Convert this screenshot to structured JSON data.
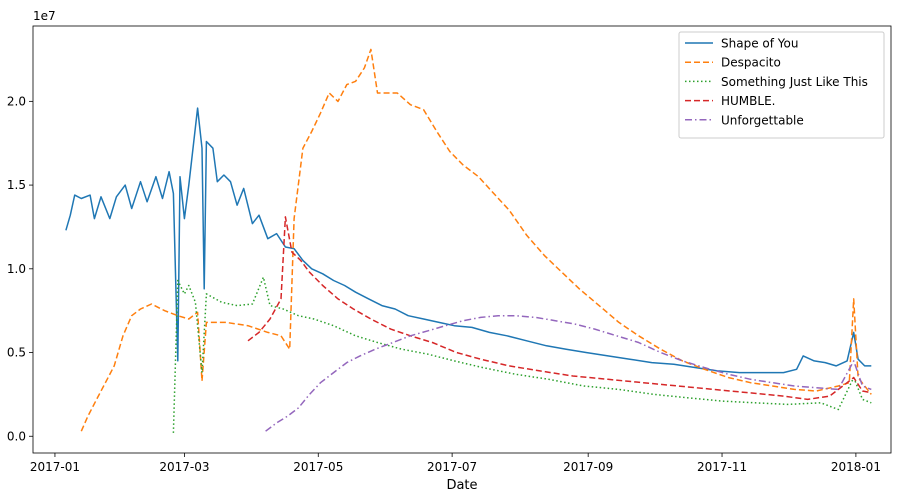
{
  "chart_data": {
    "type": "line",
    "xlabel": "Date",
    "ylabel": "",
    "y_offset_label": "1e7",
    "xlim": [
      "2016-12-22",
      "2018-01-17"
    ],
    "ylim": [
      -0.1,
      2.45
    ],
    "y_scale_note": "values in units of 1e7 streams",
    "x_ticks": [
      {
        "date": "2017-01-01",
        "label": "2017-01"
      },
      {
        "date": "2017-03-01",
        "label": "2017-03"
      },
      {
        "date": "2017-05-01",
        "label": "2017-05"
      },
      {
        "date": "2017-07-01",
        "label": "2017-07"
      },
      {
        "date": "2017-09-01",
        "label": "2017-09"
      },
      {
        "date": "2017-11-01",
        "label": "2017-11"
      },
      {
        "date": "2018-01-01",
        "label": "2018-01"
      }
    ],
    "y_ticks": [
      {
        "value": 0.0,
        "label": "0.0"
      },
      {
        "value": 0.5,
        "label": "0.5"
      },
      {
        "value": 1.0,
        "label": "1.0"
      },
      {
        "value": 1.5,
        "label": "1.5"
      },
      {
        "value": 2.0,
        "label": "2.0"
      }
    ],
    "grid": false,
    "legend_position": "top-right",
    "series": [
      {
        "name": "Shape of You",
        "color": "#1f77b4",
        "dash": "solid",
        "points": [
          [
            "2017-01-06",
            1.23
          ],
          [
            "2017-01-08",
            1.32
          ],
          [
            "2017-01-10",
            1.44
          ],
          [
            "2017-01-13",
            1.42
          ],
          [
            "2017-01-17",
            1.44
          ],
          [
            "2017-01-19",
            1.3
          ],
          [
            "2017-01-22",
            1.43
          ],
          [
            "2017-01-26",
            1.3
          ],
          [
            "2017-01-29",
            1.43
          ],
          [
            "2017-02-02",
            1.5
          ],
          [
            "2017-02-05",
            1.36
          ],
          [
            "2017-02-09",
            1.52
          ],
          [
            "2017-02-12",
            1.4
          ],
          [
            "2017-02-16",
            1.55
          ],
          [
            "2017-02-19",
            1.42
          ],
          [
            "2017-02-22",
            1.58
          ],
          [
            "2017-02-24",
            1.45
          ],
          [
            "2017-02-26",
            0.45
          ],
          [
            "2017-02-27",
            1.55
          ],
          [
            "2017-03-01",
            1.3
          ],
          [
            "2017-03-03",
            1.5
          ],
          [
            "2017-03-07",
            1.96
          ],
          [
            "2017-03-09",
            1.72
          ],
          [
            "2017-03-10",
            0.88
          ],
          [
            "2017-03-11",
            1.76
          ],
          [
            "2017-03-14",
            1.72
          ],
          [
            "2017-03-16",
            1.52
          ],
          [
            "2017-03-19",
            1.56
          ],
          [
            "2017-03-22",
            1.52
          ],
          [
            "2017-03-25",
            1.38
          ],
          [
            "2017-03-28",
            1.48
          ],
          [
            "2017-04-01",
            1.27
          ],
          [
            "2017-04-04",
            1.32
          ],
          [
            "2017-04-08",
            1.18
          ],
          [
            "2017-04-12",
            1.21
          ],
          [
            "2017-04-16",
            1.13
          ],
          [
            "2017-04-20",
            1.12
          ],
          [
            "2017-04-24",
            1.05
          ],
          [
            "2017-04-28",
            1.0
          ],
          [
            "2017-05-03",
            0.97
          ],
          [
            "2017-05-08",
            0.93
          ],
          [
            "2017-05-13",
            0.9
          ],
          [
            "2017-05-18",
            0.86
          ],
          [
            "2017-05-24",
            0.82
          ],
          [
            "2017-05-30",
            0.78
          ],
          [
            "2017-06-05",
            0.76
          ],
          [
            "2017-06-11",
            0.72
          ],
          [
            "2017-06-18",
            0.7
          ],
          [
            "2017-06-25",
            0.68
          ],
          [
            "2017-07-02",
            0.66
          ],
          [
            "2017-07-10",
            0.65
          ],
          [
            "2017-07-18",
            0.62
          ],
          [
            "2017-07-26",
            0.6
          ],
          [
            "2017-08-04",
            0.57
          ],
          [
            "2017-08-13",
            0.54
          ],
          [
            "2017-08-22",
            0.52
          ],
          [
            "2017-08-31",
            0.5
          ],
          [
            "2017-09-10",
            0.48
          ],
          [
            "2017-09-20",
            0.46
          ],
          [
            "2017-09-30",
            0.44
          ],
          [
            "2017-10-10",
            0.43
          ],
          [
            "2017-10-20",
            0.41
          ],
          [
            "2017-10-30",
            0.39
          ],
          [
            "2017-11-09",
            0.38
          ],
          [
            "2017-11-19",
            0.38
          ],
          [
            "2017-11-29",
            0.38
          ],
          [
            "2017-12-05",
            0.4
          ],
          [
            "2017-12-08",
            0.48
          ],
          [
            "2017-12-13",
            0.45
          ],
          [
            "2017-12-18",
            0.44
          ],
          [
            "2017-12-23",
            0.42
          ],
          [
            "2017-12-28",
            0.45
          ],
          [
            "2017-12-31",
            0.62
          ],
          [
            "2018-01-02",
            0.46
          ],
          [
            "2018-01-05",
            0.42
          ],
          [
            "2018-01-08",
            0.42
          ]
        ]
      },
      {
        "name": "Despacito",
        "color": "#ff7f0e",
        "dash": "dashed",
        "points": [
          [
            "2017-01-13",
            0.03
          ],
          [
            "2017-01-16",
            0.12
          ],
          [
            "2017-01-20",
            0.22
          ],
          [
            "2017-01-24",
            0.32
          ],
          [
            "2017-01-28",
            0.42
          ],
          [
            "2017-02-01",
            0.6
          ],
          [
            "2017-02-05",
            0.72
          ],
          [
            "2017-02-09",
            0.76
          ],
          [
            "2017-02-14",
            0.79
          ],
          [
            "2017-02-20",
            0.75
          ],
          [
            "2017-02-26",
            0.72
          ],
          [
            "2017-03-03",
            0.7
          ],
          [
            "2017-03-07",
            0.74
          ],
          [
            "2017-03-09",
            0.33
          ],
          [
            "2017-03-11",
            0.68
          ],
          [
            "2017-03-20",
            0.68
          ],
          [
            "2017-03-30",
            0.66
          ],
          [
            "2017-04-08",
            0.62
          ],
          [
            "2017-04-14",
            0.6
          ],
          [
            "2017-04-18",
            0.52
          ],
          [
            "2017-04-20",
            1.3
          ],
          [
            "2017-04-24",
            1.72
          ],
          [
            "2017-04-28",
            1.82
          ],
          [
            "2017-05-02",
            1.93
          ],
          [
            "2017-05-06",
            2.05
          ],
          [
            "2017-05-10",
            2.0
          ],
          [
            "2017-05-14",
            2.1
          ],
          [
            "2017-05-18",
            2.12
          ],
          [
            "2017-05-22",
            2.2
          ],
          [
            "2017-05-25",
            2.31
          ],
          [
            "2017-05-28",
            2.05
          ],
          [
            "2017-06-01",
            2.05
          ],
          [
            "2017-06-06",
            2.05
          ],
          [
            "2017-06-12",
            1.98
          ],
          [
            "2017-06-18",
            1.95
          ],
          [
            "2017-06-24",
            1.82
          ],
          [
            "2017-06-30",
            1.7
          ],
          [
            "2017-07-06",
            1.62
          ],
          [
            "2017-07-13",
            1.55
          ],
          [
            "2017-07-20",
            1.45
          ],
          [
            "2017-07-27",
            1.35
          ],
          [
            "2017-08-04",
            1.2
          ],
          [
            "2017-08-12",
            1.08
          ],
          [
            "2017-08-20",
            0.98
          ],
          [
            "2017-08-28",
            0.88
          ],
          [
            "2017-09-06",
            0.78
          ],
          [
            "2017-09-15",
            0.68
          ],
          [
            "2017-09-24",
            0.6
          ],
          [
            "2017-10-04",
            0.52
          ],
          [
            "2017-10-14",
            0.45
          ],
          [
            "2017-10-24",
            0.4
          ],
          [
            "2017-11-04",
            0.35
          ],
          [
            "2017-11-14",
            0.32
          ],
          [
            "2017-11-24",
            0.3
          ],
          [
            "2017-12-04",
            0.28
          ],
          [
            "2017-12-14",
            0.27
          ],
          [
            "2017-12-24",
            0.3
          ],
          [
            "2017-12-29",
            0.32
          ],
          [
            "2017-12-31",
            0.82
          ],
          [
            "2018-01-02",
            0.35
          ],
          [
            "2018-01-08",
            0.25
          ]
        ]
      },
      {
        "name": "Something Just Like This",
        "color": "#2ca02c",
        "dash": "dotted",
        "points": [
          [
            "2017-02-24",
            0.02
          ],
          [
            "2017-02-26",
            0.93
          ],
          [
            "2017-03-01",
            0.85
          ],
          [
            "2017-03-03",
            0.9
          ],
          [
            "2017-03-06",
            0.8
          ],
          [
            "2017-03-09",
            0.38
          ],
          [
            "2017-03-11",
            0.85
          ],
          [
            "2017-03-18",
            0.8
          ],
          [
            "2017-03-25",
            0.78
          ],
          [
            "2017-04-01",
            0.79
          ],
          [
            "2017-04-06",
            0.95
          ],
          [
            "2017-04-09",
            0.78
          ],
          [
            "2017-04-15",
            0.76
          ],
          [
            "2017-04-22",
            0.72
          ],
          [
            "2017-04-29",
            0.7
          ],
          [
            "2017-05-08",
            0.66
          ],
          [
            "2017-05-18",
            0.6
          ],
          [
            "2017-05-28",
            0.56
          ],
          [
            "2017-06-08",
            0.52
          ],
          [
            "2017-06-20",
            0.49
          ],
          [
            "2017-07-02",
            0.45
          ],
          [
            "2017-07-15",
            0.41
          ],
          [
            "2017-07-30",
            0.37
          ],
          [
            "2017-08-14",
            0.34
          ],
          [
            "2017-08-30",
            0.3
          ],
          [
            "2017-09-15",
            0.28
          ],
          [
            "2017-10-01",
            0.25
          ],
          [
            "2017-10-16",
            0.23
          ],
          [
            "2017-11-01",
            0.21
          ],
          [
            "2017-11-16",
            0.2
          ],
          [
            "2017-12-01",
            0.19
          ],
          [
            "2017-12-16",
            0.2
          ],
          [
            "2017-12-24",
            0.16
          ],
          [
            "2017-12-31",
            0.35
          ],
          [
            "2018-01-04",
            0.22
          ],
          [
            "2018-01-08",
            0.2
          ]
        ]
      },
      {
        "name": "HUMBLE.",
        "color": "#d62728",
        "dash": "dashed",
        "points": [
          [
            "2017-03-30",
            0.57
          ],
          [
            "2017-04-04",
            0.62
          ],
          [
            "2017-04-09",
            0.7
          ],
          [
            "2017-04-14",
            0.82
          ],
          [
            "2017-04-16",
            1.31
          ],
          [
            "2017-04-19",
            1.1
          ],
          [
            "2017-04-23",
            1.05
          ],
          [
            "2017-04-27",
            0.98
          ],
          [
            "2017-05-03",
            0.9
          ],
          [
            "2017-05-10",
            0.82
          ],
          [
            "2017-05-17",
            0.76
          ],
          [
            "2017-05-25",
            0.7
          ],
          [
            "2017-06-03",
            0.64
          ],
          [
            "2017-06-12",
            0.6
          ],
          [
            "2017-06-22",
            0.56
          ],
          [
            "2017-07-03",
            0.5
          ],
          [
            "2017-07-14",
            0.46
          ],
          [
            "2017-07-27",
            0.42
          ],
          [
            "2017-08-10",
            0.39
          ],
          [
            "2017-08-25",
            0.36
          ],
          [
            "2017-09-10",
            0.34
          ],
          [
            "2017-09-26",
            0.32
          ],
          [
            "2017-10-12",
            0.3
          ],
          [
            "2017-10-28",
            0.28
          ],
          [
            "2017-11-13",
            0.26
          ],
          [
            "2017-11-29",
            0.24
          ],
          [
            "2017-12-10",
            0.22
          ],
          [
            "2017-12-20",
            0.24
          ],
          [
            "2017-12-31",
            0.35
          ],
          [
            "2018-01-04",
            0.27
          ],
          [
            "2018-01-08",
            0.26
          ]
        ]
      },
      {
        "name": "Unforgettable",
        "color": "#9467bd",
        "dash": "dashdot",
        "points": [
          [
            "2017-04-07",
            0.03
          ],
          [
            "2017-04-12",
            0.08
          ],
          [
            "2017-04-17",
            0.12
          ],
          [
            "2017-04-22",
            0.17
          ],
          [
            "2017-04-27",
            0.25
          ],
          [
            "2017-05-02",
            0.32
          ],
          [
            "2017-05-08",
            0.38
          ],
          [
            "2017-05-14",
            0.44
          ],
          [
            "2017-05-20",
            0.48
          ],
          [
            "2017-05-27",
            0.52
          ],
          [
            "2017-06-04",
            0.56
          ],
          [
            "2017-06-12",
            0.6
          ],
          [
            "2017-06-20",
            0.63
          ],
          [
            "2017-06-28",
            0.66
          ],
          [
            "2017-07-06",
            0.69
          ],
          [
            "2017-07-14",
            0.71
          ],
          [
            "2017-07-22",
            0.72
          ],
          [
            "2017-07-30",
            0.72
          ],
          [
            "2017-08-08",
            0.71
          ],
          [
            "2017-08-17",
            0.69
          ],
          [
            "2017-08-26",
            0.67
          ],
          [
            "2017-09-04",
            0.64
          ],
          [
            "2017-09-14",
            0.6
          ],
          [
            "2017-09-24",
            0.56
          ],
          [
            "2017-10-04",
            0.5
          ],
          [
            "2017-10-14",
            0.45
          ],
          [
            "2017-10-24",
            0.41
          ],
          [
            "2017-11-04",
            0.37
          ],
          [
            "2017-11-14",
            0.34
          ],
          [
            "2017-11-24",
            0.32
          ],
          [
            "2017-12-04",
            0.3
          ],
          [
            "2017-12-14",
            0.29
          ],
          [
            "2017-12-24",
            0.28
          ],
          [
            "2017-12-31",
            0.45
          ],
          [
            "2018-01-04",
            0.3
          ],
          [
            "2018-01-08",
            0.28
          ]
        ]
      }
    ]
  }
}
